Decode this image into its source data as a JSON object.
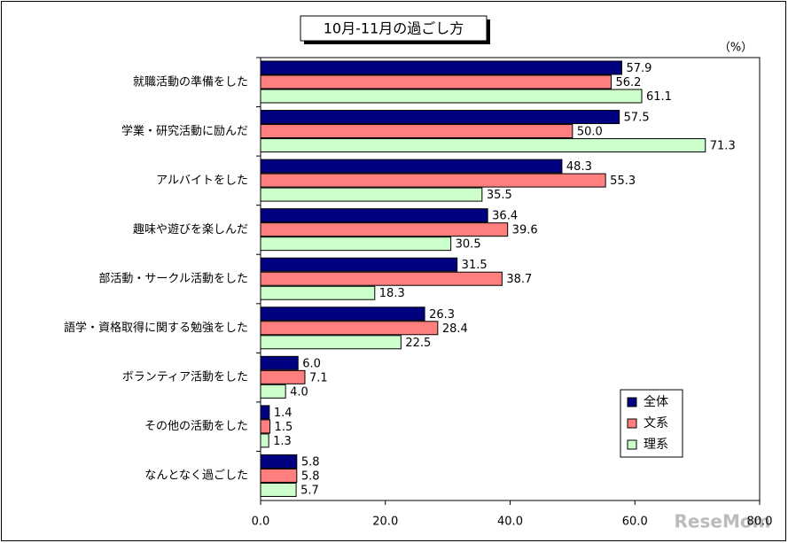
{
  "chart_data": {
    "type": "bar",
    "orientation": "horizontal",
    "title": "10月-11月の過ごし方",
    "unit_label": "（%）",
    "watermark": "ReseMom",
    "categories": [
      "就職活動の準備をした",
      "学業・研究活動に励んだ",
      "アルバイトをした",
      "趣味や遊びを楽しんだ",
      "部活動・サークル活動をした",
      "語学・資格取得に関する勉強をした",
      "ボランティア活動をした",
      "その他の活動をした",
      "なんとなく過ごした"
    ],
    "series": [
      {
        "name": "全体",
        "color": "#000080",
        "values": [
          57.9,
          57.5,
          48.3,
          36.4,
          31.5,
          26.3,
          6.0,
          1.4,
          5.8
        ],
        "value_labels": [
          "57.9",
          "57.5",
          "48.3",
          "36.4",
          "31.5",
          "26.3",
          "6.0",
          "1.4",
          "5.8"
        ]
      },
      {
        "name": "文系",
        "color": "#ff7f7f",
        "values": [
          56.2,
          50.0,
          55.3,
          39.6,
          38.7,
          28.4,
          7.1,
          1.5,
          5.8
        ],
        "value_labels": [
          "56.2",
          "50.0",
          "55.3",
          "39.6",
          "38.7",
          "28.4",
          "7.1",
          "1.5",
          "5.8"
        ]
      },
      {
        "name": "理系",
        "color": "#ccffcc",
        "values": [
          61.1,
          71.3,
          35.5,
          30.5,
          18.3,
          22.5,
          4.0,
          1.3,
          5.7
        ],
        "value_labels": [
          "61.1",
          "71.3",
          "35.5",
          "30.5",
          "18.3",
          "22.5",
          "4.0",
          "1.3",
          "5.7"
        ]
      }
    ],
    "xlim": [
      0,
      80
    ],
    "xticks": [
      {
        "value": 0,
        "label": "0.0"
      },
      {
        "value": 20,
        "label": "20.0"
      },
      {
        "value": 40,
        "label": "40.0"
      },
      {
        "value": 60,
        "label": "60.0"
      },
      {
        "value": 80,
        "label": "80.0"
      }
    ],
    "legend": "lower right",
    "grid": false
  }
}
